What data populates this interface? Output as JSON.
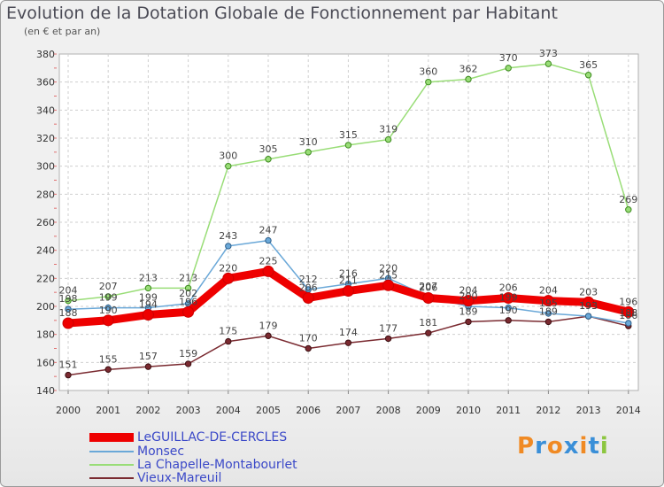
{
  "chart_data": {
    "type": "line",
    "title": "Evolution de la Dotation Globale de Fonctionnement par Habitant",
    "subtitle": "(en € et par an)",
    "xlabel": "",
    "ylabel": "",
    "x": [
      "2000",
      "2001",
      "2002",
      "2003",
      "2004",
      "2005",
      "2006",
      "2007",
      "2008",
      "2009",
      "2010",
      "2011",
      "2012",
      "2013",
      "2014"
    ],
    "ylim": [
      140,
      380
    ],
    "yticks": [
      140,
      160,
      180,
      200,
      220,
      240,
      260,
      280,
      300,
      320,
      340,
      360,
      380
    ],
    "grid": true,
    "legend": "bottom-left",
    "series": [
      {
        "name": "LeGUILLAC-DE-CERCLES",
        "color": "#ee0000",
        "values": [
          188,
          190,
          194,
          196,
          220,
          225,
          206,
          211,
          215,
          206,
          204,
          206,
          204,
          203,
          196
        ]
      },
      {
        "name": "Monsec",
        "color": "#6aa8d8",
        "values": [
          198,
          199,
          199,
          202,
          243,
          247,
          212,
          216,
          220,
          207,
          200,
          199,
          195,
          193,
          188
        ]
      },
      {
        "name": "La Chapelle-Montabourlet",
        "color": "#99dd77",
        "values": [
          204,
          207,
          213,
          213,
          300,
          305,
          310,
          315,
          319,
          360,
          362,
          370,
          373,
          365,
          269
        ]
      },
      {
        "name": "Vieux-Mareuil",
        "color": "#7a2a30",
        "values": [
          151,
          155,
          157,
          159,
          175,
          179,
          170,
          174,
          177,
          181,
          189,
          190,
          189,
          193,
          186
        ]
      }
    ]
  },
  "logo": {
    "text": "Proxiti",
    "letters": [
      "P",
      "r",
      "o",
      "x",
      "i",
      "t",
      "i"
    ]
  }
}
